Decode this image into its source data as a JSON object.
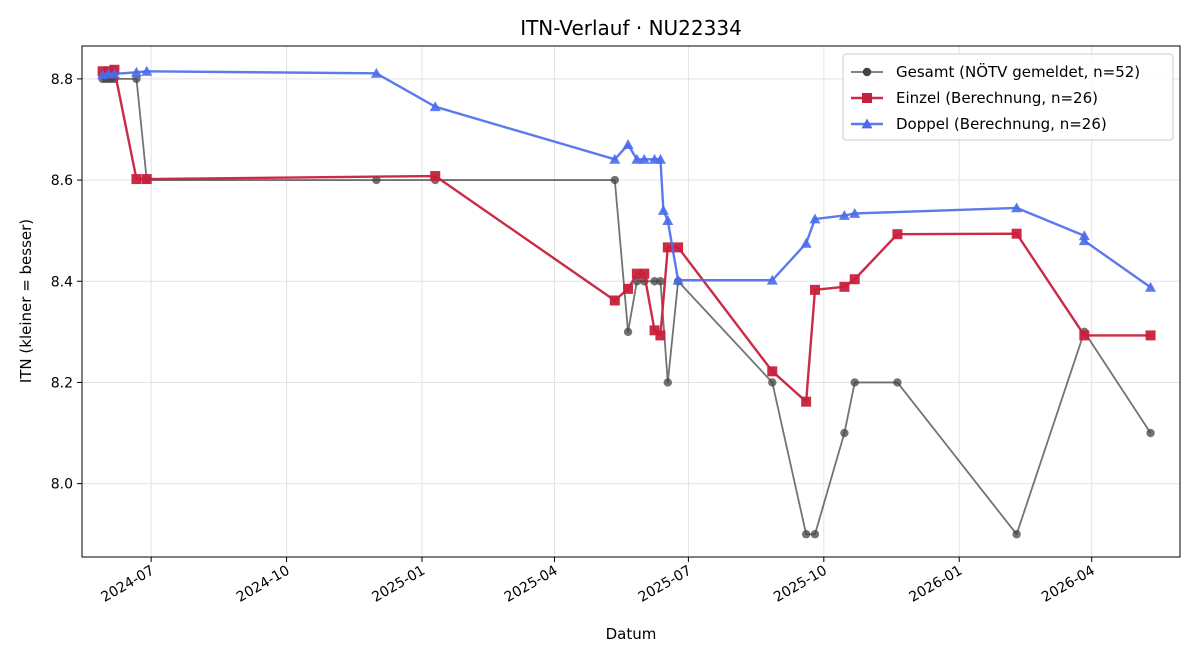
{
  "chart_data": {
    "type": "line",
    "title": "ITN-Verlauf · NU22334",
    "xlabel": "Datum",
    "ylabel": "ITN  (kleiner = besser)",
    "x_axis": "date",
    "xlim": [
      "2024-05-15",
      "2026-05-31"
    ],
    "ylim": [
      7.855,
      8.865
    ],
    "x_ticks": [
      "2024-07-01",
      "2024-10-01",
      "2025-01-01",
      "2025-04-01",
      "2025-07-01",
      "2025-10-01",
      "2026-01-01",
      "2026-04-01"
    ],
    "x_tick_labels": [
      "2024-07",
      "2024-10",
      "2025-01",
      "2025-04",
      "2025-07",
      "2025-10",
      "2026-01",
      "2026-04"
    ],
    "y_ticks": [
      8.0,
      8.2,
      8.4,
      8.6,
      8.8
    ],
    "y_tick_labels": [
      "8.0",
      "8.2",
      "8.4",
      "8.6",
      "8.8"
    ],
    "grid": true,
    "legend_position": "top-right",
    "series": [
      {
        "name": "Gesamt (NÖTV gemeldet, n=52)",
        "color": "#444444",
        "marker": "circle",
        "points": [
          [
            "2024-05-29",
            8.8
          ],
          [
            "2024-05-31",
            8.8
          ],
          [
            "2024-06-02",
            8.8
          ],
          [
            "2024-06-04",
            8.8
          ],
          [
            "2024-06-06",
            8.8
          ],
          [
            "2024-06-21",
            8.8
          ],
          [
            "2024-06-28",
            8.6
          ],
          [
            "2024-12-01",
            8.6
          ],
          [
            "2025-01-10",
            8.6
          ],
          [
            "2025-05-12",
            8.6
          ],
          [
            "2025-05-21",
            8.3
          ],
          [
            "2025-05-27",
            8.4
          ],
          [
            "2025-06-01",
            8.4
          ],
          [
            "2025-06-08",
            8.4
          ],
          [
            "2025-06-12",
            8.4
          ],
          [
            "2025-06-17",
            8.2
          ],
          [
            "2025-06-24",
            8.4
          ],
          [
            "2025-08-27",
            8.2
          ],
          [
            "2025-09-19",
            7.9
          ],
          [
            "2025-09-25",
            7.9
          ],
          [
            "2025-10-15",
            8.1
          ],
          [
            "2025-10-22",
            8.2
          ],
          [
            "2025-11-20",
            8.2
          ],
          [
            "2026-02-09",
            7.9
          ],
          [
            "2026-03-27",
            8.3
          ],
          [
            "2026-05-11",
            8.1
          ]
        ]
      },
      {
        "name": "Einzel (Berechnung, n=26)",
        "color": "#c8203c",
        "marker": "square",
        "points": [
          [
            "2024-05-29",
            8.815
          ],
          [
            "2024-06-02",
            8.815
          ],
          [
            "2024-06-06",
            8.818
          ],
          [
            "2024-06-21",
            8.602
          ],
          [
            "2024-06-28",
            8.602
          ],
          [
            "2025-01-10",
            8.608
          ],
          [
            "2025-05-12",
            8.362
          ],
          [
            "2025-05-21",
            8.385
          ],
          [
            "2025-05-27",
            8.415
          ],
          [
            "2025-06-01",
            8.415
          ],
          [
            "2025-06-08",
            8.303
          ],
          [
            "2025-06-12",
            8.293
          ],
          [
            "2025-06-17",
            8.467
          ],
          [
            "2025-06-24",
            8.467
          ],
          [
            "2025-08-27",
            8.222
          ],
          [
            "2025-09-19",
            8.162
          ],
          [
            "2025-09-25",
            8.383
          ],
          [
            "2025-10-15",
            8.389
          ],
          [
            "2025-10-22",
            8.404
          ],
          [
            "2025-11-20",
            8.493
          ],
          [
            "2026-02-09",
            8.494
          ],
          [
            "2026-03-27",
            8.293
          ],
          [
            "2026-05-11",
            8.293
          ]
        ]
      },
      {
        "name": "Doppel (Berechnung, n=26)",
        "color": "#4a6bea",
        "marker": "triangle",
        "points": [
          [
            "2024-05-29",
            8.808
          ],
          [
            "2024-06-02",
            8.81
          ],
          [
            "2024-06-06",
            8.81
          ],
          [
            "2024-06-21",
            8.813
          ],
          [
            "2024-06-28",
            8.815
          ],
          [
            "2024-12-01",
            8.811
          ],
          [
            "2025-01-10",
            8.745
          ],
          [
            "2025-05-12",
            8.641
          ],
          [
            "2025-05-21",
            8.67
          ],
          [
            "2025-05-27",
            8.641
          ],
          [
            "2025-06-01",
            8.641
          ],
          [
            "2025-06-08",
            8.641
          ],
          [
            "2025-06-12",
            8.641
          ],
          [
            "2025-06-14",
            8.54
          ],
          [
            "2025-06-17",
            8.52
          ],
          [
            "2025-06-24",
            8.402
          ],
          [
            "2025-08-27",
            8.402
          ],
          [
            "2025-09-19",
            8.475
          ],
          [
            "2025-09-25",
            8.523
          ],
          [
            "2025-10-15",
            8.53
          ],
          [
            "2025-10-22",
            8.534
          ],
          [
            "2026-02-09",
            8.545
          ],
          [
            "2026-03-27",
            8.49
          ],
          [
            "2026-03-27",
            8.48
          ],
          [
            "2026-05-11",
            8.388
          ]
        ]
      }
    ]
  }
}
